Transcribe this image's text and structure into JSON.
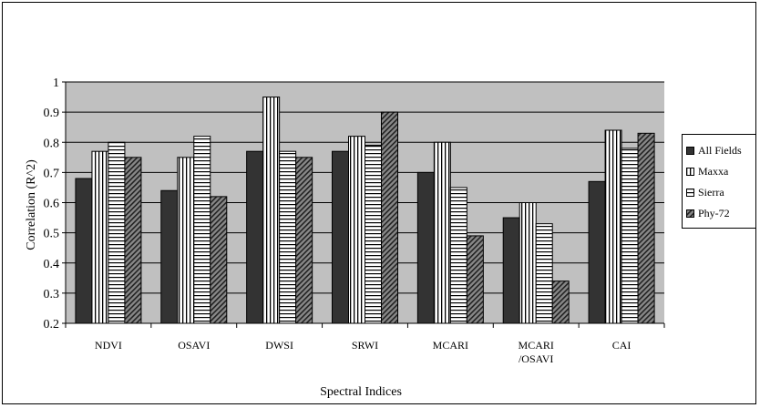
{
  "chart_data": {
    "type": "bar",
    "title": "",
    "xlabel": "Spectral Indices",
    "ylabel": "Correlation (R^2)",
    "ylim": [
      0.2,
      1
    ],
    "yticks": [
      "0.2",
      "0.3",
      "0.4",
      "0.5",
      "0.6",
      "0.7",
      "0.8",
      "0.9",
      "1"
    ],
    "grid": true,
    "legend_position": "right",
    "categories": [
      [
        "NDVI"
      ],
      [
        "OSAVI"
      ],
      [
        "DWSI"
      ],
      [
        "SRWI"
      ],
      [
        "MCARI"
      ],
      [
        "MCARI",
        "/OSAVI"
      ],
      [
        "CAI"
      ]
    ],
    "series": [
      {
        "name": "All Fields",
        "values": [
          0.68,
          0.64,
          0.77,
          0.77,
          0.7,
          0.55,
          0.67
        ],
        "fill": "#333333",
        "pattern": "solid"
      },
      {
        "name": "Maxxa",
        "values": [
          0.77,
          0.75,
          0.95,
          0.82,
          0.8,
          0.6,
          0.84
        ],
        "fill": "#ffffff",
        "pattern": "vertical"
      },
      {
        "name": "Sierra",
        "values": [
          0.8,
          0.82,
          0.77,
          0.79,
          0.65,
          0.53,
          0.78
        ],
        "fill": "#ffffff",
        "pattern": "horizontal"
      },
      {
        "name": "Phy-72",
        "values": [
          0.75,
          0.62,
          0.75,
          0.9,
          0.49,
          0.34,
          0.83
        ],
        "fill": "#777777",
        "pattern": "diagonal"
      }
    ],
    "colors": {
      "plot_background": "#c0c0c0",
      "gridline": "#000000"
    }
  }
}
